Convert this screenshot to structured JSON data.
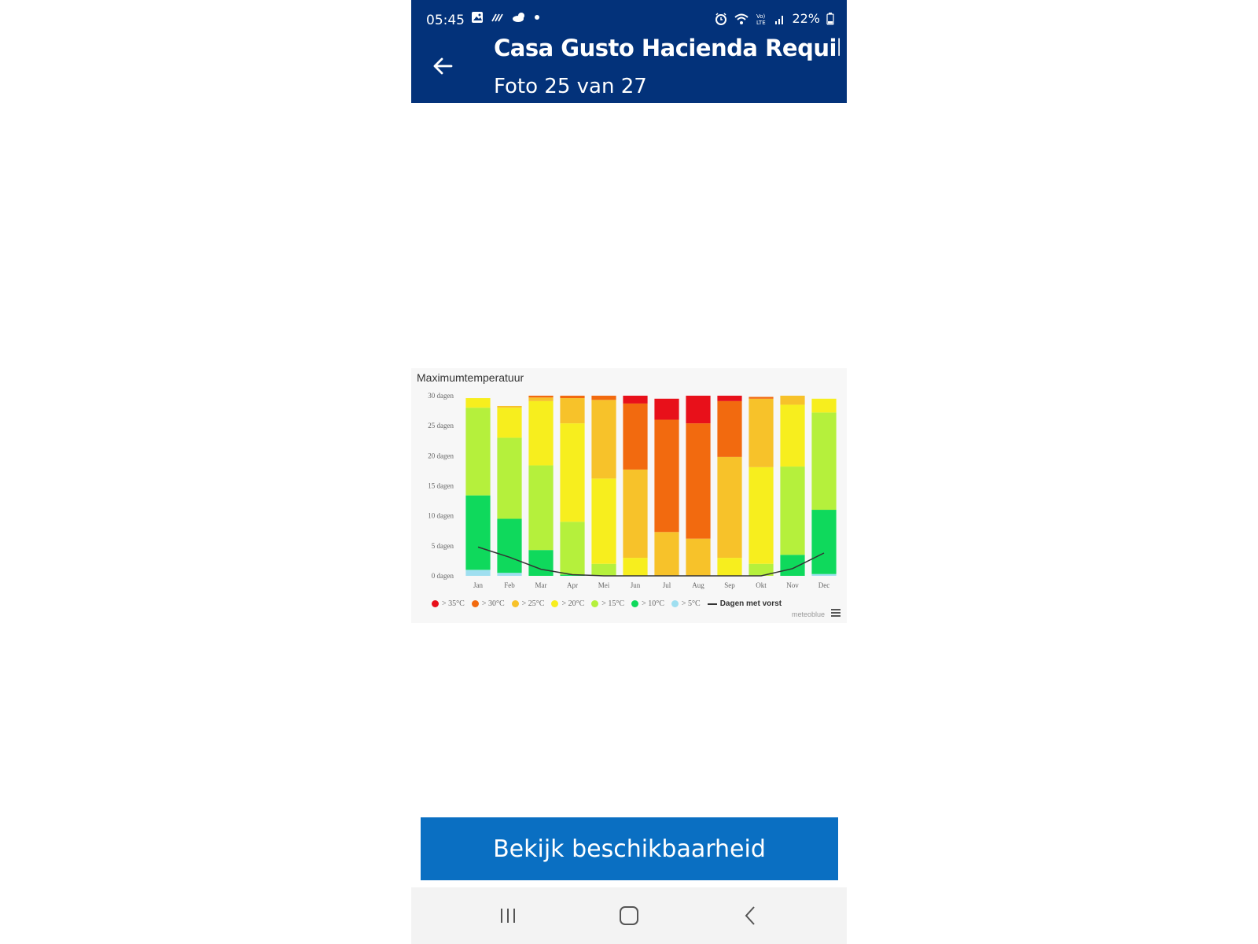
{
  "status_bar": {
    "time": "05:45",
    "battery": "22%",
    "icons_left": [
      "gallery-icon",
      "signal-wave-icon",
      "weather-icon",
      "notification-dot-icon"
    ],
    "icons_right": [
      "alarm-icon",
      "wifi-icon",
      "volte-icon",
      "cell-signal-icon",
      "battery-icon"
    ]
  },
  "header": {
    "title": "Casa Gusto Hacienda Requilme...",
    "subtitle": "Foto 25 van 27",
    "background_color": "#03327a"
  },
  "chart": {
    "title": "Maximumtemperatuur",
    "credit": "meteoblue",
    "legend": [
      {
        "label": "> 35°C",
        "color": "#e8101a"
      },
      {
        "label": "> 30°C",
        "color": "#f26a0f"
      },
      {
        "label": "> 25°C",
        "color": "#f7c22a"
      },
      {
        "label": "> 20°C",
        "color": "#f7ee1e"
      },
      {
        "label": "> 15°C",
        "color": "#b5f03c"
      },
      {
        "label": "> 10°C",
        "color": "#0fd95c"
      },
      {
        "label": "> 5°C",
        "color": "#9fdff0"
      }
    ],
    "legend_line_label": "Dagen met vorst"
  },
  "chart_data": {
    "type": "bar",
    "title": "Maximumtemperatuur",
    "stacked": true,
    "categories": [
      "Jan",
      "Feb",
      "Mar",
      "Apr",
      "Mei",
      "Jun",
      "Jul",
      "Aug",
      "Sep",
      "Okt",
      "Nov",
      "Dec"
    ],
    "y_ticks": [
      "0 dagen",
      "5 dagen",
      "10 dagen",
      "15 dagen",
      "20 dagen",
      "25 dagen",
      "30 dagen"
    ],
    "ylim": [
      0,
      30
    ],
    "series": [
      {
        "name": "> 5°C",
        "color": "#9fdff0",
        "values": [
          1,
          0.5,
          0,
          0,
          0,
          0,
          0,
          0,
          0,
          0,
          0,
          0.3
        ]
      },
      {
        "name": "> 10°C",
        "color": "#0fd95c",
        "values": [
          12.4,
          9,
          4.3,
          0.2,
          0,
          0,
          0,
          0,
          0,
          0,
          3.5,
          10.7
        ]
      },
      {
        "name": "> 15°C",
        "color": "#b5f03c",
        "values": [
          14.6,
          13.5,
          14.1,
          8.8,
          2,
          0,
          0,
          0,
          0,
          2,
          14.7,
          16.2
        ]
      },
      {
        "name": "> 20°C",
        "color": "#f7ee1e",
        "values": [
          1.6,
          5,
          10.7,
          16.4,
          14.2,
          3,
          0,
          0,
          3,
          16.1,
          10.3,
          2.3
        ]
      },
      {
        "name": "> 25°C",
        "color": "#f7c22a",
        "values": [
          0,
          0.3,
          0.6,
          4.2,
          13.1,
          14.7,
          7.3,
          6.2,
          16.8,
          11.4,
          1.5,
          0
        ]
      },
      {
        "name": "> 30°C",
        "color": "#f26a0f",
        "values": [
          0,
          0,
          0.3,
          0.4,
          0.7,
          11,
          18.7,
          19.2,
          9.3,
          0.3,
          0,
          0
        ]
      },
      {
        "name": "> 35°C",
        "color": "#e8101a",
        "values": [
          0,
          0,
          0,
          0,
          0,
          1.3,
          3.5,
          4.6,
          0.9,
          0,
          0,
          0
        ]
      }
    ],
    "line_series": {
      "name": "Dagen met vorst",
      "color": "#333333",
      "values": [
        4.8,
        3.1,
        1.1,
        0.2,
        0,
        0,
        0,
        0,
        0,
        0,
        1.2,
        3.8
      ]
    }
  },
  "cta": {
    "label": "Bekijk beschikbaarheid",
    "color": "#0a6fc2"
  },
  "nav": {
    "icons": [
      "recent-apps-icon",
      "home-icon",
      "back-nav-icon"
    ]
  }
}
